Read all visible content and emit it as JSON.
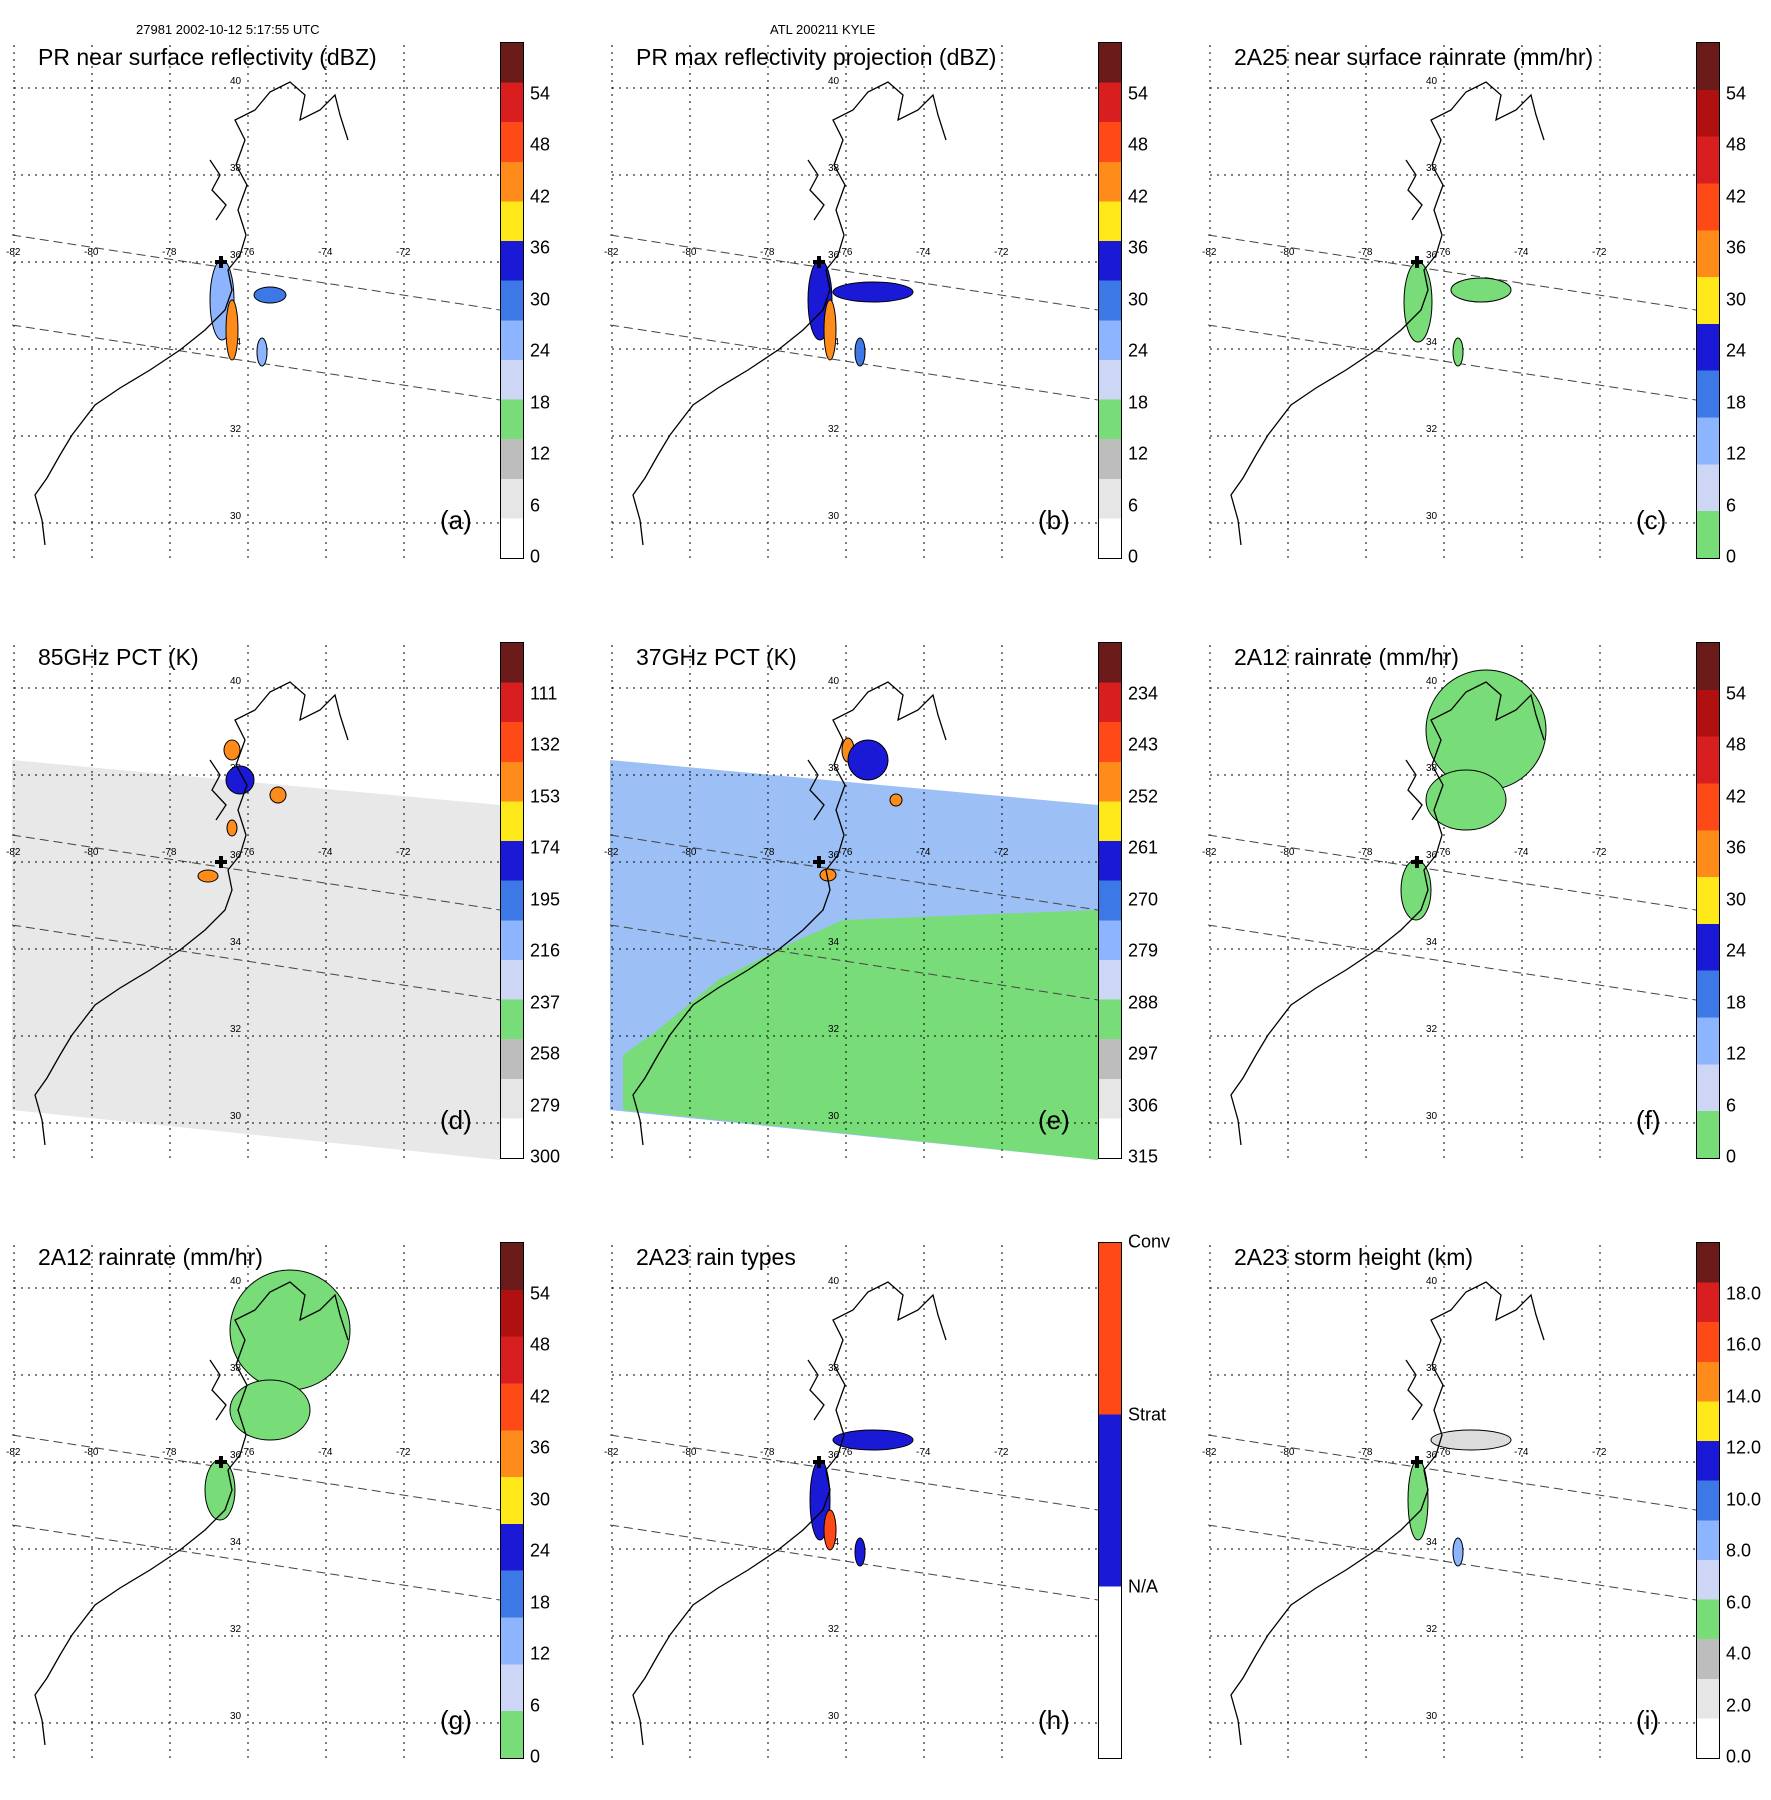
{
  "header": {
    "left": "27981 2002-10-12 5:17:55 UTC",
    "center": "ATL 200211 KYLE"
  },
  "grid": {
    "longitudes": [
      "-82",
      "-80",
      "-78",
      "-76",
      "-74",
      "-72"
    ],
    "latitudes": [
      "40",
      "38",
      "36",
      "34",
      "32",
      "30"
    ]
  },
  "colors": {
    "dark_red": "#6b1a1a",
    "red": "#d81e1e",
    "orange_red": "#ff4a17",
    "orange": "#ff8c1a",
    "yellow": "#ffe81a",
    "blue": "#1a1ad6",
    "mid_blue": "#3c78e6",
    "light_blue": "#8cb4ff",
    "pale_blue": "#cdd7f5",
    "green": "#78dc78",
    "gray": "#9a9a9a",
    "light_gray": "#dcdcdc"
  },
  "panels": [
    {
      "id": "a",
      "title": "PR near surface reflectivity (dBZ)",
      "label": "(a)",
      "ticks": [
        "54",
        "48",
        "42",
        "36",
        "30",
        "24",
        "18",
        "12",
        "6",
        "0"
      ],
      "colorbar": "refl"
    },
    {
      "id": "b",
      "title": "PR max reflectivity projection (dBZ)",
      "label": "(b)",
      "ticks": [
        "54",
        "48",
        "42",
        "36",
        "30",
        "24",
        "18",
        "12",
        "6",
        "0"
      ],
      "colorbar": "refl"
    },
    {
      "id": "c",
      "title": "2A25 near surface rainrate (mm/hr)",
      "label": "(c)",
      "ticks": [
        "54",
        "48",
        "42",
        "36",
        "30",
        "24",
        "18",
        "12",
        "6",
        "0"
      ],
      "colorbar": "rain"
    },
    {
      "id": "d",
      "title": "85GHz PCT (K)",
      "label": "(d)",
      "ticks": [
        "111",
        "132",
        "153",
        "174",
        "195",
        "216",
        "237",
        "258",
        "279",
        "300"
      ],
      "colorbar": "refl"
    },
    {
      "id": "e",
      "title": "37GHz PCT (K)",
      "label": "(e)",
      "ticks": [
        "234",
        "243",
        "252",
        "261",
        "270",
        "279",
        "288",
        "297",
        "306",
        "315"
      ],
      "colorbar": "refl"
    },
    {
      "id": "f",
      "title": "2A12 rainrate (mm/hr)",
      "label": "(f)",
      "ticks": [
        "54",
        "48",
        "42",
        "36",
        "30",
        "24",
        "18",
        "12",
        "6",
        "0"
      ],
      "colorbar": "rain"
    },
    {
      "id": "g",
      "title": "2A12 rainrate (mm/hr)",
      "label": "(g)",
      "ticks": [
        "54",
        "48",
        "42",
        "36",
        "30",
        "24",
        "18",
        "12",
        "6",
        "0"
      ],
      "colorbar": "rain"
    },
    {
      "id": "h",
      "title": "2A23 rain types",
      "label": "(h)",
      "ticks": [
        "Conv",
        "Strat",
        "N/A"
      ],
      "colorbar": "types"
    },
    {
      "id": "i",
      "title": "2A23 storm height (km)",
      "label": "(i)",
      "ticks": [
        "18.0",
        "16.0",
        "14.0",
        "12.0",
        "10.0",
        "8.0",
        "6.0",
        "4.0",
        "2.0",
        "0.0"
      ],
      "colorbar": "refl"
    }
  ]
}
